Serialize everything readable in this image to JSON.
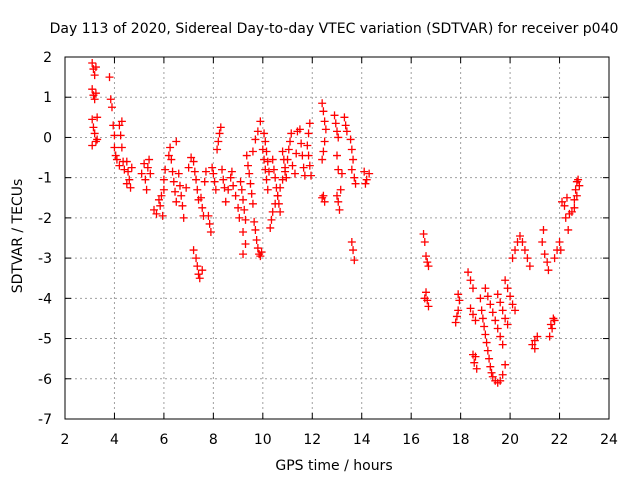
{
  "chart_data": {
    "type": "scatter",
    "title": "Day 113 of 2020, Sidereal Day-to-day VTEC variation (SDTVAR) for receiver p040",
    "xlabel": "GPS time / hours",
    "ylabel": "SDTVAR / TECUs",
    "xlim": [
      2,
      24
    ],
    "ylim": [
      -7,
      2
    ],
    "xticks": [
      "2",
      "4",
      "6",
      "8",
      "10",
      "12",
      "14",
      "16",
      "18",
      "20",
      "22",
      "24"
    ],
    "yticks": [
      "2",
      "1",
      "0",
      "-1",
      "-2",
      "-3",
      "-4",
      "-5",
      "-6",
      "-7"
    ],
    "grid": true,
    "marker": "+",
    "colors": {
      "series": "#ff0000",
      "grid": "#a0a0a0",
      "axis": "#000000"
    },
    "series": [
      {
        "name": "SDTVAR",
        "points": [
          [
            3.1,
            1.85
          ],
          [
            3.15,
            1.7
          ],
          [
            3.2,
            1.55
          ],
          [
            3.25,
            1.75
          ],
          [
            3.1,
            1.2
          ],
          [
            3.15,
            1.05
          ],
          [
            3.2,
            0.95
          ],
          [
            3.25,
            1.1
          ],
          [
            3.1,
            0.45
          ],
          [
            3.15,
            0.25
          ],
          [
            3.2,
            0.1
          ],
          [
            3.25,
            -0.1
          ],
          [
            3.1,
            -0.2
          ],
          [
            3.3,
            0.5
          ],
          [
            3.3,
            -0.05
          ],
          [
            3.8,
            1.5
          ],
          [
            3.85,
            0.95
          ],
          [
            3.9,
            0.75
          ],
          [
            3.95,
            0.3
          ],
          [
            4.0,
            0.05
          ],
          [
            4.0,
            -0.25
          ],
          [
            4.05,
            -0.45
          ],
          [
            4.1,
            -0.55
          ],
          [
            4.2,
            0.3
          ],
          [
            4.25,
            0.05
          ],
          [
            4.3,
            -0.25
          ],
          [
            4.35,
            -0.6
          ],
          [
            4.4,
            -0.8
          ],
          [
            4.3,
            0.4
          ],
          [
            4.2,
            -0.7
          ],
          [
            4.5,
            -0.6
          ],
          [
            4.55,
            -0.85
          ],
          [
            4.6,
            -1.05
          ],
          [
            4.65,
            -1.25
          ],
          [
            4.7,
            -0.75
          ],
          [
            4.5,
            -1.15
          ],
          [
            5.1,
            -0.9
          ],
          [
            5.2,
            -0.65
          ],
          [
            5.25,
            -1.05
          ],
          [
            5.3,
            -1.3
          ],
          [
            5.35,
            -0.75
          ],
          [
            5.4,
            -0.55
          ],
          [
            5.45,
            -0.9
          ],
          [
            5.6,
            -1.8
          ],
          [
            5.7,
            -1.9
          ],
          [
            5.8,
            -1.55
          ],
          [
            5.85,
            -1.7
          ],
          [
            5.9,
            -1.45
          ],
          [
            5.95,
            -1.95
          ],
          [
            6.0,
            -1.3
          ],
          [
            6.0,
            -1.05
          ],
          [
            6.05,
            -0.8
          ],
          [
            6.2,
            -0.45
          ],
          [
            6.25,
            -0.25
          ],
          [
            6.3,
            -0.55
          ],
          [
            6.35,
            -0.85
          ],
          [
            6.4,
            -1.1
          ],
          [
            6.45,
            -1.35
          ],
          [
            6.5,
            -1.6
          ],
          [
            6.5,
            -0.1
          ],
          [
            6.6,
            -0.9
          ],
          [
            6.65,
            -1.2
          ],
          [
            6.7,
            -1.45
          ],
          [
            6.75,
            -1.7
          ],
          [
            6.8,
            -2.0
          ],
          [
            6.9,
            -1.25
          ],
          [
            7.0,
            -0.75
          ],
          [
            7.1,
            -0.5
          ],
          [
            7.2,
            -0.6
          ],
          [
            7.25,
            -0.85
          ],
          [
            7.3,
            -1.05
          ],
          [
            7.35,
            -1.3
          ],
          [
            7.4,
            -1.55
          ],
          [
            7.5,
            -1.5
          ],
          [
            7.55,
            -1.75
          ],
          [
            7.6,
            -1.95
          ],
          [
            7.65,
            -1.1
          ],
          [
            7.7,
            -0.85
          ],
          [
            7.2,
            -2.8
          ],
          [
            7.3,
            -3.0
          ],
          [
            7.35,
            -3.2
          ],
          [
            7.4,
            -3.4
          ],
          [
            7.45,
            -3.5
          ],
          [
            7.55,
            -3.3
          ],
          [
            7.8,
            -1.95
          ],
          [
            7.85,
            -2.15
          ],
          [
            7.9,
            -2.35
          ],
          [
            7.95,
            -0.75
          ],
          [
            8.0,
            -0.9
          ],
          [
            8.05,
            -1.1
          ],
          [
            8.1,
            -1.3
          ],
          [
            8.15,
            -0.3
          ],
          [
            8.2,
            -0.1
          ],
          [
            8.25,
            0.1
          ],
          [
            8.3,
            0.25
          ],
          [
            8.35,
            -0.8
          ],
          [
            8.4,
            -1.05
          ],
          [
            8.45,
            -1.25
          ],
          [
            8.5,
            -1.6
          ],
          [
            8.6,
            -1.3
          ],
          [
            8.7,
            -1.0
          ],
          [
            8.75,
            -0.85
          ],
          [
            8.8,
            -1.2
          ],
          [
            8.9,
            -1.45
          ],
          [
            9.0,
            -1.75
          ],
          [
            9.05,
            -2.0
          ],
          [
            9.1,
            -1.1
          ],
          [
            9.15,
            -1.3
          ],
          [
            9.2,
            -1.55
          ],
          [
            9.25,
            -1.8
          ],
          [
            9.3,
            -2.05
          ],
          [
            9.2,
            -2.35
          ],
          [
            9.3,
            -2.65
          ],
          [
            9.2,
            -2.9
          ],
          [
            9.35,
            -0.45
          ],
          [
            9.4,
            -0.7
          ],
          [
            9.45,
            -0.9
          ],
          [
            9.5,
            -1.15
          ],
          [
            9.55,
            -1.4
          ],
          [
            9.6,
            -1.65
          ],
          [
            9.65,
            -2.1
          ],
          [
            9.7,
            -2.3
          ],
          [
            9.75,
            -2.55
          ],
          [
            9.8,
            -2.75
          ],
          [
            9.85,
            -2.9
          ],
          [
            9.9,
            -2.95
          ],
          [
            9.95,
            -2.85
          ],
          [
            10.0,
            -0.3
          ],
          [
            10.05,
            -0.55
          ],
          [
            10.1,
            -0.8
          ],
          [
            10.15,
            -1.05
          ],
          [
            10.2,
            -1.3
          ],
          [
            9.9,
            0.4
          ],
          [
            9.8,
            0.15
          ],
          [
            9.7,
            -0.05
          ],
          [
            9.6,
            -0.35
          ],
          [
            10.05,
            0.1
          ],
          [
            10.1,
            -0.1
          ],
          [
            10.15,
            -0.35
          ],
          [
            10.2,
            -0.6
          ],
          [
            10.25,
            -0.85
          ],
          [
            10.3,
            -2.25
          ],
          [
            10.35,
            -2.05
          ],
          [
            10.4,
            -1.85
          ],
          [
            10.5,
            -1.65
          ],
          [
            10.6,
            -1.45
          ],
          [
            10.7,
            -1.25
          ],
          [
            10.8,
            -1.05
          ],
          [
            10.9,
            -0.85
          ],
          [
            10.4,
            -0.55
          ],
          [
            10.45,
            -0.8
          ],
          [
            10.5,
            -1.0
          ],
          [
            10.55,
            -1.25
          ],
          [
            10.6,
            -1.45
          ],
          [
            10.65,
            -1.65
          ],
          [
            10.7,
            -1.85
          ],
          [
            10.8,
            -0.35
          ],
          [
            10.85,
            -0.55
          ],
          [
            10.9,
            -0.75
          ],
          [
            10.95,
            -1.0
          ],
          [
            11.0,
            -0.55
          ],
          [
            11.05,
            -0.3
          ],
          [
            11.1,
            -0.1
          ],
          [
            11.15,
            0.1
          ],
          [
            11.2,
            -0.7
          ],
          [
            11.3,
            -0.9
          ],
          [
            11.35,
            -0.4
          ],
          [
            11.4,
            0.15
          ],
          [
            11.5,
            0.2
          ],
          [
            11.55,
            -0.15
          ],
          [
            11.6,
            -0.45
          ],
          [
            11.65,
            -0.75
          ],
          [
            11.7,
            -0.95
          ],
          [
            11.8,
            -0.2
          ],
          [
            11.85,
            -0.45
          ],
          [
            11.9,
            -0.7
          ],
          [
            11.95,
            -0.95
          ],
          [
            11.9,
            0.35
          ],
          [
            11.85,
            0.1
          ],
          [
            12.4,
            0.85
          ],
          [
            12.45,
            0.65
          ],
          [
            12.5,
            0.4
          ],
          [
            12.55,
            0.2
          ],
          [
            12.5,
            -0.1
          ],
          [
            12.45,
            -0.35
          ],
          [
            12.4,
            -0.55
          ],
          [
            12.4,
            -1.5
          ],
          [
            12.5,
            -1.6
          ],
          [
            12.45,
            -1.45
          ],
          [
            12.9,
            0.55
          ],
          [
            12.95,
            0.35
          ],
          [
            13.0,
            0.15
          ],
          [
            13.05,
            0.0
          ],
          [
            13.0,
            -0.45
          ],
          [
            13.05,
            -0.8
          ],
          [
            13.0,
            -1.45
          ],
          [
            13.05,
            -1.6
          ],
          [
            13.1,
            -1.8
          ],
          [
            13.15,
            -1.3
          ],
          [
            13.2,
            -0.9
          ],
          [
            13.3,
            0.5
          ],
          [
            13.35,
            0.3
          ],
          [
            13.4,
            0.15
          ],
          [
            13.55,
            -0.05
          ],
          [
            13.6,
            -0.3
          ],
          [
            13.65,
            -0.55
          ],
          [
            13.6,
            -0.8
          ],
          [
            13.7,
            -1.0
          ],
          [
            13.75,
            -1.15
          ],
          [
            13.6,
            -2.6
          ],
          [
            13.65,
            -2.8
          ],
          [
            13.7,
            -3.05
          ],
          [
            14.1,
            -0.85
          ],
          [
            14.2,
            -1.05
          ],
          [
            14.15,
            -1.15
          ],
          [
            14.3,
            -0.9
          ],
          [
            16.5,
            -2.4
          ],
          [
            16.55,
            -2.6
          ],
          [
            16.6,
            -2.95
          ],
          [
            16.65,
            -3.1
          ],
          [
            16.7,
            -3.2
          ],
          [
            16.6,
            -3.85
          ],
          [
            16.65,
            -4.05
          ],
          [
            16.7,
            -4.2
          ],
          [
            16.55,
            -4.0
          ],
          [
            17.8,
            -4.6
          ],
          [
            17.85,
            -4.45
          ],
          [
            17.9,
            -4.3
          ],
          [
            17.9,
            -3.9
          ],
          [
            17.95,
            -4.05
          ],
          [
            18.3,
            -3.35
          ],
          [
            18.4,
            -3.55
          ],
          [
            18.5,
            -3.75
          ],
          [
            18.4,
            -4.25
          ],
          [
            18.5,
            -4.4
          ],
          [
            18.6,
            -4.55
          ],
          [
            18.5,
            -5.4
          ],
          [
            18.55,
            -5.6
          ],
          [
            18.65,
            -5.75
          ],
          [
            18.6,
            -5.45
          ],
          [
            18.8,
            -4.0
          ],
          [
            18.85,
            -4.3
          ],
          [
            18.9,
            -4.5
          ],
          [
            18.95,
            -4.7
          ],
          [
            19.0,
            -4.9
          ],
          [
            19.05,
            -5.1
          ],
          [
            19.1,
            -5.3
          ],
          [
            19.15,
            -5.5
          ],
          [
            19.2,
            -5.7
          ],
          [
            19.25,
            -5.85
          ],
          [
            19.3,
            -5.95
          ],
          [
            19.4,
            -6.05
          ],
          [
            19.5,
            -6.1
          ],
          [
            19.6,
            -6.05
          ],
          [
            19.7,
            -5.9
          ],
          [
            19.8,
            -5.65
          ],
          [
            19.0,
            -3.75
          ],
          [
            19.1,
            -3.95
          ],
          [
            19.2,
            -4.15
          ],
          [
            19.3,
            -4.35
          ],
          [
            19.4,
            -4.55
          ],
          [
            19.5,
            -4.75
          ],
          [
            19.6,
            -4.95
          ],
          [
            19.7,
            -5.15
          ],
          [
            19.5,
            -3.9
          ],
          [
            19.6,
            -4.1
          ],
          [
            19.7,
            -4.3
          ],
          [
            19.8,
            -4.5
          ],
          [
            19.9,
            -4.65
          ],
          [
            19.8,
            -3.55
          ],
          [
            19.9,
            -3.75
          ],
          [
            20.0,
            -3.95
          ],
          [
            20.1,
            -4.15
          ],
          [
            20.2,
            -4.3
          ],
          [
            20.1,
            -3.0
          ],
          [
            20.2,
            -2.8
          ],
          [
            20.3,
            -2.6
          ],
          [
            20.4,
            -2.45
          ],
          [
            20.5,
            -2.6
          ],
          [
            20.6,
            -2.8
          ],
          [
            20.7,
            -3.0
          ],
          [
            20.8,
            -3.2
          ],
          [
            20.9,
            -5.15
          ],
          [
            21.0,
            -5.05
          ],
          [
            21.1,
            -4.95
          ],
          [
            21.0,
            -5.25
          ],
          [
            21.3,
            -2.6
          ],
          [
            21.35,
            -2.3
          ],
          [
            21.4,
            -2.9
          ],
          [
            21.5,
            -3.1
          ],
          [
            21.55,
            -3.3
          ],
          [
            21.6,
            -4.95
          ],
          [
            21.7,
            -4.75
          ],
          [
            21.8,
            -4.55
          ],
          [
            21.65,
            -4.65
          ],
          [
            21.75,
            -4.5
          ],
          [
            21.8,
            -3.0
          ],
          [
            21.9,
            -2.8
          ],
          [
            22.0,
            -2.6
          ],
          [
            22.05,
            -2.8
          ],
          [
            22.1,
            -1.6
          ],
          [
            22.2,
            -1.7
          ],
          [
            22.3,
            -1.5
          ],
          [
            22.25,
            -2.0
          ],
          [
            22.35,
            -2.3
          ],
          [
            22.4,
            -1.9
          ],
          [
            22.5,
            -1.85
          ],
          [
            22.6,
            -1.55
          ],
          [
            22.65,
            -1.3
          ],
          [
            22.7,
            -1.1
          ],
          [
            22.75,
            -1.05
          ],
          [
            22.8,
            -1.2
          ],
          [
            22.7,
            -1.45
          ],
          [
            22.6,
            -1.75
          ]
        ]
      }
    ]
  }
}
